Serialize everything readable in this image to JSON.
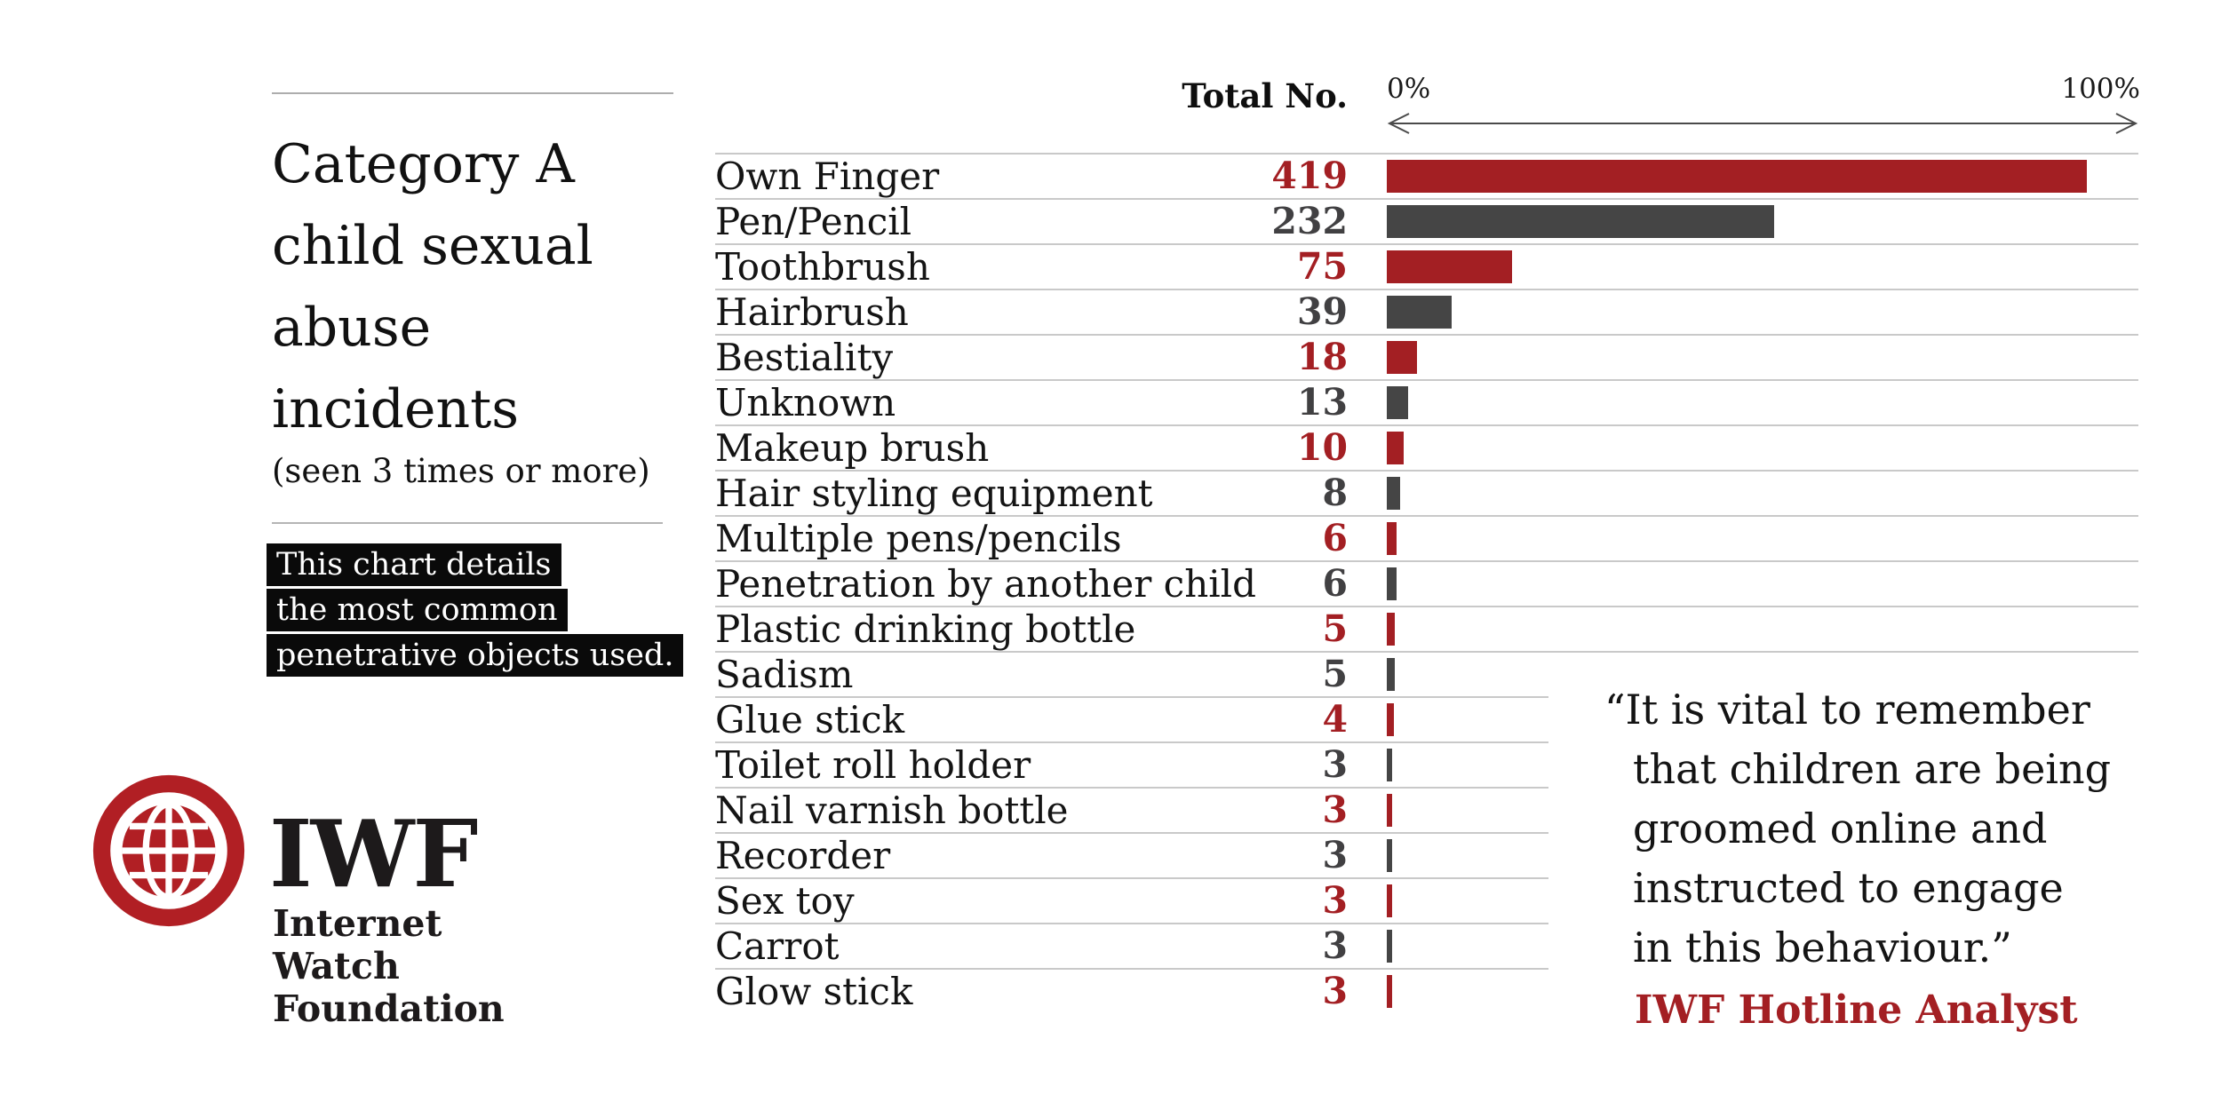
{
  "left_panel": {
    "title_lines": [
      "Category A",
      "child sexual",
      "abuse",
      "incidents"
    ],
    "subtitle": "(seen 3 times or more)",
    "note_lines": [
      "This chart details",
      "the most common",
      "penetrative objects used."
    ],
    "logo": {
      "acronym": "IWF",
      "name_lines": [
        "Internet",
        "Watch",
        "Foundation"
      ],
      "globe_icon": "globe-icon",
      "brand_red": "#b11f24"
    }
  },
  "chart": {
    "total_header": "Total No.",
    "axis_min_label": "0%",
    "axis_max_label": "100%"
  },
  "chart_data": {
    "type": "bar",
    "orientation": "horizontal",
    "title": "Category A child sexual abuse incidents (seen 3 times or more)",
    "subtitle_note": "This chart details the most common penetrative objects used.",
    "value_column_header": "Total No.",
    "x_axis": {
      "min_label": "0%",
      "max_label": "100%",
      "double_arrow": true
    },
    "max_value": 419,
    "grid": "horizontal row separators",
    "categories": [
      "Own Finger",
      "Pen/Pencil",
      "Toothbrush",
      "Hairbrush",
      "Bestiality",
      "Unknown",
      "Makeup brush",
      "Hair styling equipment",
      "Multiple pens/pencils",
      "Penetration by another child",
      "Plastic drinking bottle",
      "Sadism",
      "Glue stick",
      "Toilet roll holder",
      "Nail varnish bottle",
      "Recorder",
      "Sex toy",
      "Carrot",
      "Glow stick"
    ],
    "values": [
      419,
      232,
      75,
      39,
      18,
      13,
      10,
      8,
      6,
      6,
      5,
      5,
      4,
      3,
      3,
      3,
      3,
      3,
      3
    ],
    "bar_color_hex": {
      "red": "#a31f23",
      "dark": "#454545"
    },
    "rows": [
      {
        "label": "Own Finger",
        "value": "419",
        "color": "red"
      },
      {
        "label": "Pen/Pencil",
        "value": "232",
        "color": "dark"
      },
      {
        "label": "Toothbrush",
        "value": "75",
        "color": "red"
      },
      {
        "label": "Hairbrush",
        "value": "39",
        "color": "dark"
      },
      {
        "label": "Bestiality",
        "value": "18",
        "color": "red"
      },
      {
        "label": "Unknown",
        "value": "13",
        "color": "dark"
      },
      {
        "label": "Makeup brush",
        "value": "10",
        "color": "red"
      },
      {
        "label": "Hair styling equipment",
        "value": "8",
        "color": "dark"
      },
      {
        "label": "Multiple pens/pencils",
        "value": "6",
        "color": "red"
      },
      {
        "label": "Penetration by another child",
        "value": "6",
        "color": "dark"
      },
      {
        "label": "Plastic drinking bottle",
        "value": "5",
        "color": "red"
      },
      {
        "label": "Sadism",
        "value": "5",
        "color": "dark"
      },
      {
        "label": "Glue stick",
        "value": "4",
        "color": "red"
      },
      {
        "label": "Toilet roll holder",
        "value": "3",
        "color": "dark"
      },
      {
        "label": "Nail varnish bottle",
        "value": "3",
        "color": "red"
      },
      {
        "label": "Recorder",
        "value": "3",
        "color": "dark"
      },
      {
        "label": "Sex toy",
        "value": "3",
        "color": "red"
      },
      {
        "label": "Carrot",
        "value": "3",
        "color": "dark"
      },
      {
        "label": "Glow stick",
        "value": "3",
        "color": "red"
      }
    ]
  },
  "quote": {
    "lines": [
      "“It is vital to remember",
      "that children are being",
      "groomed online and",
      "instructed to engage",
      "in this behaviour.”"
    ],
    "attribution": "IWF Hotline Analyst"
  }
}
